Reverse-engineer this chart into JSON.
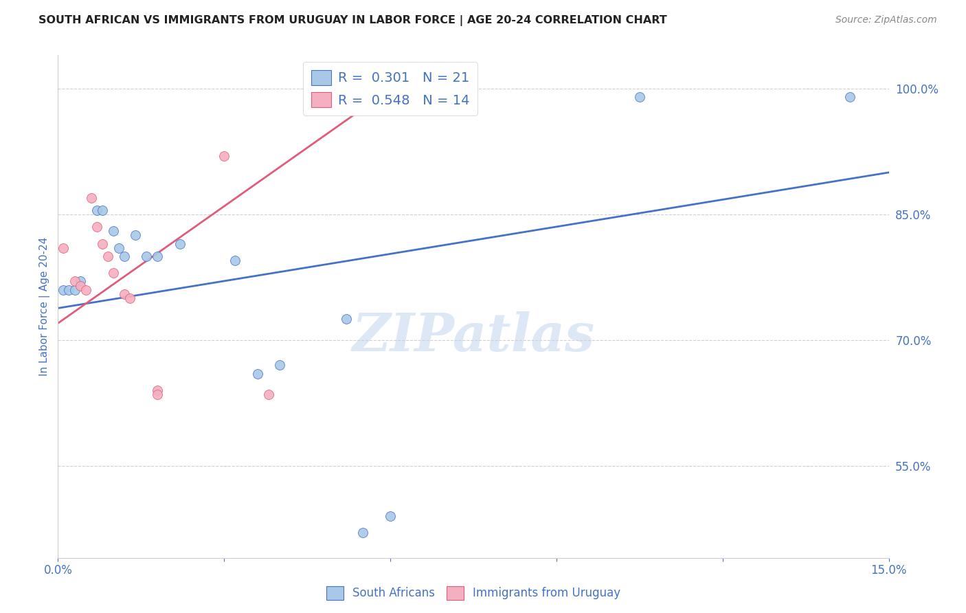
{
  "title": "SOUTH AFRICAN VS IMMIGRANTS FROM URUGUAY IN LABOR FORCE | AGE 20-24 CORRELATION CHART",
  "source": "Source: ZipAtlas.com",
  "ylabel": "In Labor Force | Age 20-24",
  "ytick_labels": [
    "100.0%",
    "85.0%",
    "70.0%",
    "55.0%"
  ],
  "ytick_values": [
    1.0,
    0.85,
    0.7,
    0.55
  ],
  "xlim": [
    0.0,
    0.15
  ],
  "ylim": [
    0.44,
    1.04
  ],
  "blue_scatter": [
    [
      0.001,
      0.76
    ],
    [
      0.002,
      0.76
    ],
    [
      0.003,
      0.76
    ],
    [
      0.004,
      0.77
    ],
    [
      0.007,
      0.855
    ],
    [
      0.008,
      0.855
    ],
    [
      0.01,
      0.83
    ],
    [
      0.011,
      0.81
    ],
    [
      0.012,
      0.8
    ],
    [
      0.014,
      0.825
    ],
    [
      0.016,
      0.8
    ],
    [
      0.018,
      0.8
    ],
    [
      0.022,
      0.815
    ],
    [
      0.032,
      0.795
    ],
    [
      0.036,
      0.66
    ],
    [
      0.04,
      0.67
    ],
    [
      0.052,
      0.725
    ],
    [
      0.055,
      0.47
    ],
    [
      0.06,
      0.49
    ],
    [
      0.105,
      0.99
    ],
    [
      0.143,
      0.99
    ]
  ],
  "pink_scatter": [
    [
      0.001,
      0.81
    ],
    [
      0.003,
      0.77
    ],
    [
      0.004,
      0.765
    ],
    [
      0.005,
      0.76
    ],
    [
      0.006,
      0.87
    ],
    [
      0.007,
      0.835
    ],
    [
      0.008,
      0.815
    ],
    [
      0.009,
      0.8
    ],
    [
      0.01,
      0.78
    ],
    [
      0.012,
      0.755
    ],
    [
      0.013,
      0.75
    ],
    [
      0.018,
      0.64
    ],
    [
      0.018,
      0.635
    ],
    [
      0.03,
      0.92
    ],
    [
      0.038,
      0.635
    ]
  ],
  "blue_line_x": [
    0.0,
    0.15
  ],
  "blue_line_y": [
    0.738,
    0.9
  ],
  "pink_line_x": [
    0.0,
    0.058
  ],
  "pink_line_y": [
    0.72,
    0.99
  ],
  "blue_color": "#a8c8e8",
  "pink_color": "#f4b0c0",
  "blue_line_color": "#4472c4",
  "pink_line_color": "#e05c7a",
  "title_color": "#222222",
  "source_color": "#888888",
  "axis_label_color": "#4472c4",
  "tick_color": "#4472c4",
  "grid_color": "#d0d0d0",
  "watermark_color": "#dce8f5",
  "background_color": "#ffffff"
}
